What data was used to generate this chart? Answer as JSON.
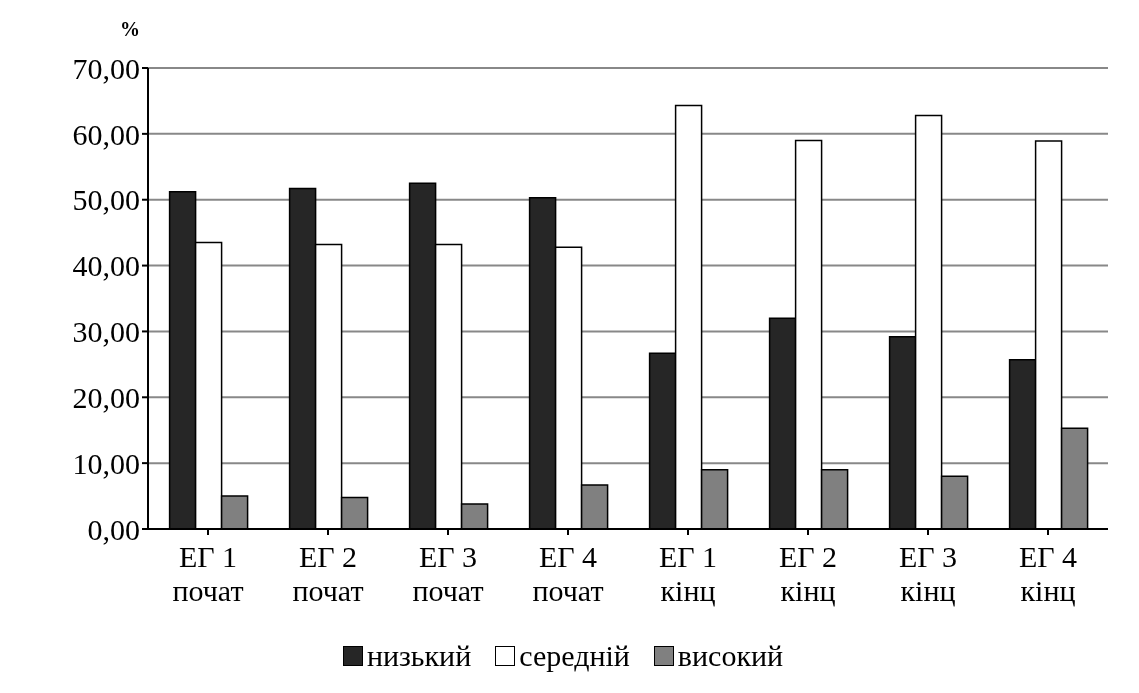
{
  "chart_data": {
    "type": "bar",
    "ylabel": "%",
    "categories": [
      "ЕГ 1 почат",
      "ЕГ 2 почат",
      "ЕГ 3 почат",
      "ЕГ 4 почат",
      "ЕГ 1 кінц",
      "ЕГ 2 кінц",
      "ЕГ 3 кінц",
      "ЕГ 4 кінц"
    ],
    "series": [
      {
        "name": "низький",
        "color": "#262626",
        "values": [
          51.2,
          51.7,
          52.5,
          50.3,
          26.7,
          32.0,
          29.2,
          25.7
        ]
      },
      {
        "name": "середній",
        "color": "#ffffff",
        "values": [
          43.5,
          43.2,
          43.2,
          42.8,
          64.3,
          59.0,
          62.8,
          58.9
        ]
      },
      {
        "name": "високий",
        "color": "#808080",
        "values": [
          5.0,
          4.8,
          3.8,
          6.7,
          9.0,
          9.0,
          8.0,
          15.3
        ]
      }
    ],
    "ylim": [
      0,
      70
    ],
    "yticks": [
      {
        "value": 0,
        "label": "0,00"
      },
      {
        "value": 10,
        "label": "10,00"
      },
      {
        "value": 20,
        "label": "20,00"
      },
      {
        "value": 30,
        "label": "30,00"
      },
      {
        "value": 40,
        "label": "40,00"
      },
      {
        "value": 50,
        "label": "50,00"
      },
      {
        "value": 60,
        "label": "60,00"
      },
      {
        "value": 70,
        "label": "70,00"
      }
    ],
    "grid": "y",
    "legend": "bottom"
  }
}
